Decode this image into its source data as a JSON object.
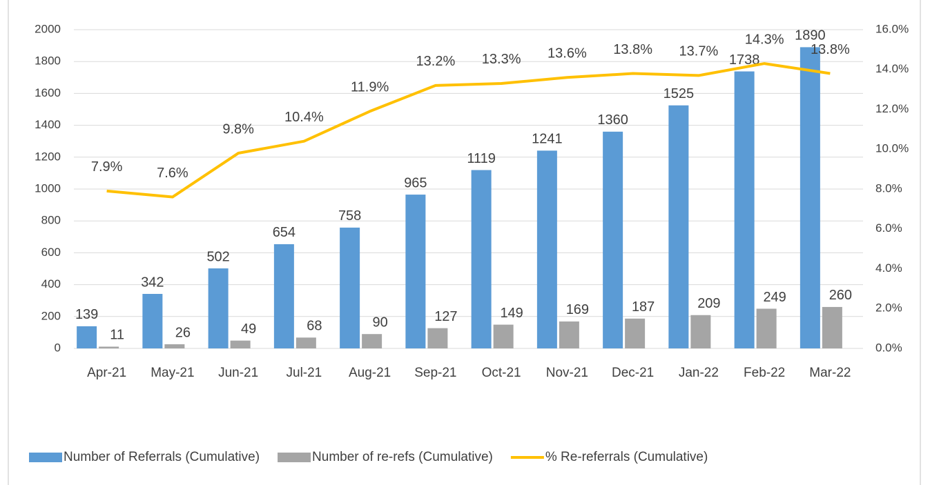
{
  "chart_data": {
    "type": "combo",
    "categories": [
      "Apr-21",
      "May-21",
      "Jun-21",
      "Jul-21",
      "Aug-21",
      "Sep-21",
      "Oct-21",
      "Nov-21",
      "Dec-21",
      "Jan-22",
      "Feb-22",
      "Mar-22"
    ],
    "series": [
      {
        "name": "Number of Referrals (Cumulative)",
        "type": "bar",
        "color": "#5b9bd5",
        "values": [
          139,
          342,
          502,
          654,
          758,
          965,
          1119,
          1241,
          1360,
          1525,
          1738,
          1890
        ]
      },
      {
        "name": "Number of re-refs (Cumulative)",
        "type": "bar",
        "color": "#a5a5a5",
        "values": [
          11,
          26,
          49,
          68,
          90,
          127,
          149,
          169,
          187,
          209,
          249,
          260
        ]
      },
      {
        "name": "% Re-referrals (Cumulative)",
        "type": "line",
        "axis": "y2",
        "color": "#ffc000",
        "values": [
          7.9,
          7.6,
          9.8,
          10.4,
          11.9,
          13.2,
          13.3,
          13.6,
          13.8,
          13.7,
          14.3,
          13.8
        ],
        "value_labels": [
          "7.9%",
          "7.6%",
          "9.8%",
          "10.4%",
          "11.9%",
          "13.2%",
          "13.3%",
          "13.6%",
          "13.8%",
          "13.7%",
          "14.3%",
          "13.8%"
        ]
      }
    ],
    "ylim": [
      0,
      2000
    ],
    "yticks": [
      0,
      200,
      400,
      600,
      800,
      1000,
      1200,
      1400,
      1600,
      1800,
      2000
    ],
    "y2lim": [
      0,
      16
    ],
    "y2ticks": [
      {
        "value": 0,
        "label": "0.0%"
      },
      {
        "value": 2,
        "label": "2.0%"
      },
      {
        "value": 4,
        "label": "4.0%"
      },
      {
        "value": 6,
        "label": "6.0%"
      },
      {
        "value": 8,
        "label": "8.0%"
      },
      {
        "value": 10,
        "label": "10.0%"
      },
      {
        "value": 12,
        "label": "12.0%"
      },
      {
        "value": 14,
        "label": "14.0%"
      },
      {
        "value": 16,
        "label": "16.0%"
      }
    ],
    "grid": true,
    "legend": "bottom"
  }
}
